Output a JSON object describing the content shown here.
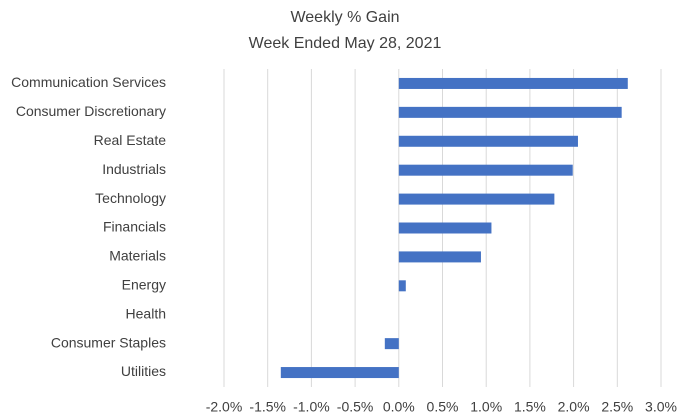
{
  "chart_data": {
    "type": "bar",
    "orientation": "horizontal",
    "title": "Weekly % Gain",
    "subtitle": "Week Ended May 28, 2021",
    "categories": [
      "Communication Services",
      "Consumer Discretionary",
      "Real Estate",
      "Industrials",
      "Technology",
      "Financials",
      "Materials",
      "Energy",
      "Health",
      "Consumer Staples",
      "Utilities"
    ],
    "values": [
      2.62,
      2.55,
      2.05,
      1.99,
      1.78,
      1.06,
      0.94,
      0.08,
      0,
      -0.16,
      -1.35
    ],
    "color": "#4472c4",
    "xlim": [
      -2.0,
      3.0
    ],
    "xticks": [
      {
        "value": -2.0,
        "label": "-2.0%"
      },
      {
        "value": -1.5,
        "label": "-1.5%"
      },
      {
        "value": -1.0,
        "label": "-1.0%"
      },
      {
        "value": -0.5,
        "label": "-0.5%"
      },
      {
        "value": 0,
        "label": "0.0%"
      },
      {
        "value": 0.5,
        "label": "0.5%"
      },
      {
        "value": 1.0,
        "label": "1.0%"
      },
      {
        "value": 1.5,
        "label": "1.5%"
      },
      {
        "value": 2.0,
        "label": "2.0%"
      },
      {
        "value": 2.5,
        "label": "2.5%"
      },
      {
        "value": 3.0,
        "label": "3.0%"
      }
    ],
    "grid": true
  }
}
